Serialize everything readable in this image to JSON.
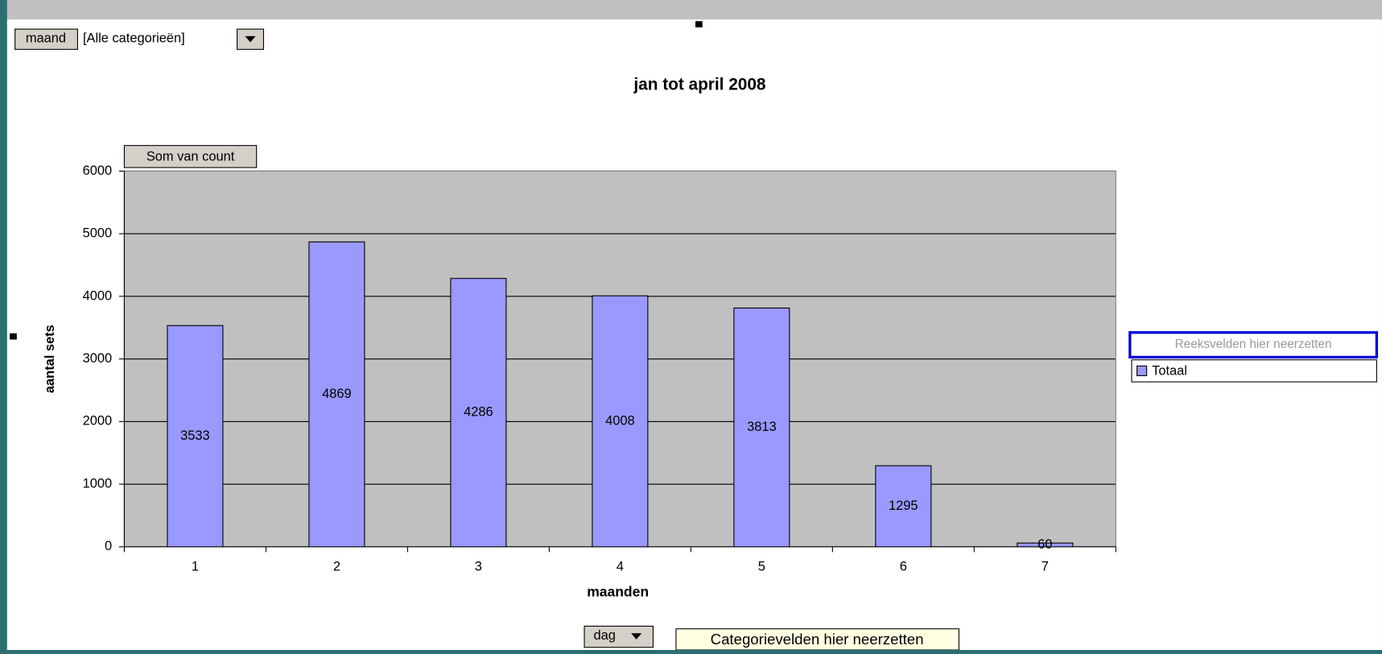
{
  "chart_data": {
    "type": "bar",
    "title": "jan tot april 2008",
    "x_label": "maanden",
    "y_label": "aantal sets",
    "categories": [
      "1",
      "2",
      "3",
      "4",
      "5",
      "6",
      "7"
    ],
    "series": [
      {
        "name": "Totaal",
        "color": "#9999ff",
        "values": [
          3533,
          4869,
          4286,
          4008,
          3813,
          1295,
          60
        ]
      }
    ],
    "ylim": [
      0,
      6000
    ],
    "yticks": [
      0,
      1000,
      2000,
      3000,
      4000,
      5000,
      6000
    ],
    "grid": true,
    "legend": "right"
  },
  "fields": {
    "page_field": "maand",
    "page_filter": "[Alle categorieën]",
    "data_field": "Som van count",
    "series_drop": "Reeksvelden hier neerzetten",
    "category_field": "dag",
    "category_drop": "Categorievelden hier neerzetten"
  }
}
